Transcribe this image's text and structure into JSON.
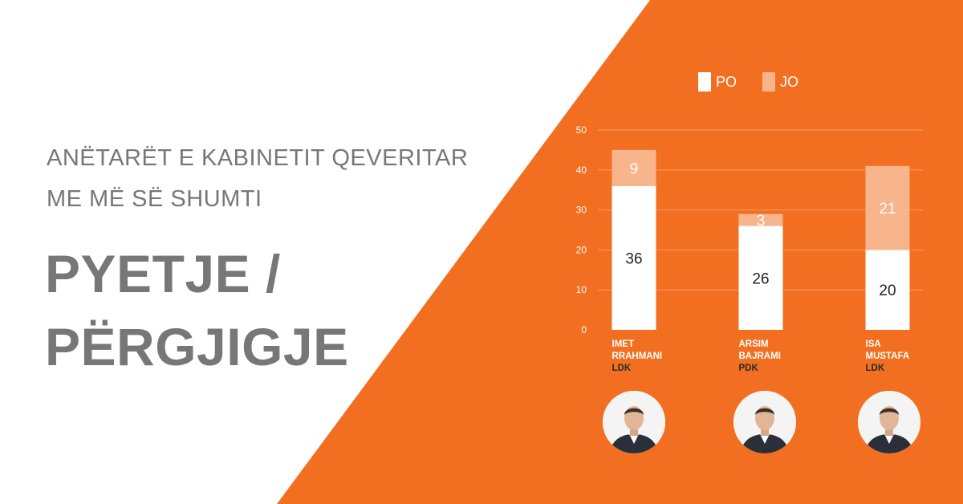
{
  "colors": {
    "background": "#ffffff",
    "accent": "#f26f21",
    "po": "#ffffff",
    "jo": "#f8b48a",
    "heading_text": "#77777a"
  },
  "header": {
    "subtitle_line1": "ANËTARËT E KABINETIT QEVERITAR",
    "subtitle_line2": "ME MË SË SHUMTI",
    "title_line1": "PYETJE /",
    "title_line2": "PËRGJIGJE"
  },
  "chart_data": {
    "type": "bar",
    "stacked": true,
    "categories": [
      "IMET RRAHMANI",
      "ARSIM BAJRAMI",
      "ISA MUSTAFA"
    ],
    "category_lines": [
      [
        "IMET",
        "RRAHMANI"
      ],
      [
        "ARSIM",
        "BAJRAMI"
      ],
      [
        "ISA",
        "MUSTAFA"
      ]
    ],
    "parties": [
      "LDK",
      "PDK",
      "LDK"
    ],
    "series": [
      {
        "name": "PO",
        "values": [
          36,
          26,
          20
        ]
      },
      {
        "name": "JO",
        "values": [
          9,
          3,
          21
        ]
      }
    ],
    "ylim": [
      0,
      50
    ],
    "yticks": [
      0,
      10,
      20,
      30,
      40,
      50
    ],
    "grid": true,
    "legend_position": "top",
    "title": "",
    "xlabel": "",
    "ylabel": ""
  },
  "avatars": [
    {
      "icon": "person-photo-icon",
      "person": "IMET RRAHMANI"
    },
    {
      "icon": "person-photo-icon",
      "person": "ARSIM BAJRAMI"
    },
    {
      "icon": "person-photo-icon",
      "person": "ISA MUSTAFA"
    }
  ]
}
